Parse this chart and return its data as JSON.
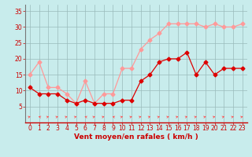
{
  "hours": [
    0,
    1,
    2,
    3,
    4,
    5,
    6,
    7,
    8,
    9,
    10,
    11,
    12,
    13,
    14,
    15,
    16,
    17,
    18,
    19,
    20,
    21,
    22,
    23
  ],
  "wind_avg": [
    11,
    9,
    9,
    9,
    7,
    6,
    7,
    6,
    6,
    6,
    7,
    7,
    13,
    15,
    19,
    20,
    20,
    22,
    15,
    19,
    15,
    17,
    17,
    17
  ],
  "wind_gust": [
    15,
    19,
    11,
    11,
    9,
    6,
    13,
    6,
    9,
    9,
    17,
    17,
    23,
    26,
    28,
    31,
    31,
    31,
    31,
    30,
    31,
    30,
    30,
    31
  ],
  "color_avg": "#dd0000",
  "color_gust": "#ff9999",
  "color_arrow": "#ff5555",
  "bg_color": "#c8ecec",
  "grid_color": "#99bbbb",
  "axis_color": "#cc0000",
  "text_color": "#cc0000",
  "xlabel": "Vent moyen/en rafales ( km/h )",
  "ylim": [
    0,
    37
  ],
  "yticks": [
    5,
    10,
    15,
    20,
    25,
    30,
    35
  ],
  "xlim": [
    -0.5,
    23.5
  ],
  "xticks": [
    0,
    1,
    2,
    3,
    4,
    5,
    6,
    7,
    8,
    9,
    10,
    11,
    12,
    13,
    14,
    15,
    16,
    17,
    18,
    19,
    20,
    21,
    22,
    23
  ],
  "arrow_angles": [
    45,
    135,
    45,
    45,
    45,
    45,
    135,
    45,
    45,
    135,
    45,
    45,
    45,
    45,
    45,
    45,
    45,
    45,
    45,
    45,
    45,
    45,
    45,
    45
  ],
  "figwidth": 3.2,
  "figheight": 2.0,
  "dpi": 100
}
